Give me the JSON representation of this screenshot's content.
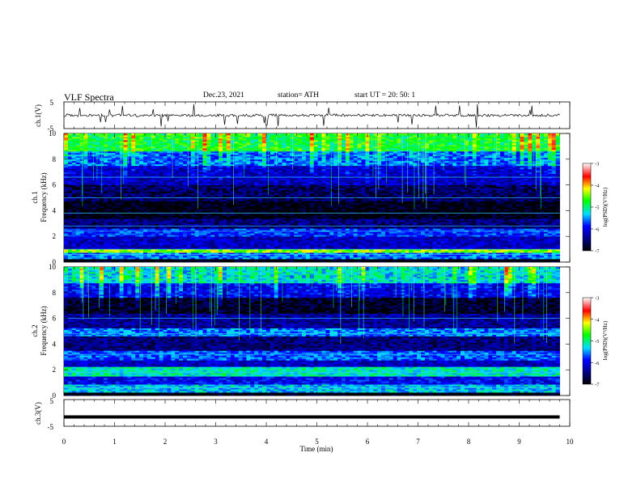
{
  "header": {
    "title": "VLF  Spectra",
    "date": "Dec.23, 2021",
    "station": "station= ATH",
    "start_ut": "start  UT  =    20: 50: 1"
  },
  "chart_data": [
    {
      "type": "line",
      "panel": "waveform-top",
      "ylabel": "ch.1(V)",
      "ylim": [
        -5,
        5
      ],
      "yticks": [
        "5",
        "-5"
      ],
      "xlim": [
        0,
        10
      ],
      "approx_level": 0,
      "note_style": "noisy signal with many sharp spikes"
    },
    {
      "type": "heatmap",
      "panel": "spectrogram-ch1",
      "ylabel": "ch.1\nFrequency  (kHz)",
      "ylabel_line1": "ch.1",
      "ylabel_line2": "Frequency  (kHz)",
      "ylim": [
        0,
        10
      ],
      "yticks": [
        "0",
        "2",
        "4",
        "6",
        "8",
        "10"
      ],
      "xlim": [
        0,
        10
      ],
      "data_end_min": 9.8,
      "colorbar": {
        "label": "log(PSD)(V²/Hz)",
        "ticks": [
          "-3",
          "-4",
          "-5",
          "-6",
          "-7"
        ],
        "range": [
          -7,
          -3
        ]
      },
      "bands": [
        {
          "from": 0.0,
          "to": 0.3,
          "level": -7.0
        },
        {
          "from": 0.3,
          "to": 0.8,
          "level": -5.6
        },
        {
          "from": 0.8,
          "to": 1.0,
          "level": -4.5
        },
        {
          "from": 1.0,
          "to": 2.0,
          "level": -6.2
        },
        {
          "from": 2.0,
          "to": 2.6,
          "level": -5.8
        },
        {
          "from": 2.6,
          "to": 3.4,
          "level": -6.5
        },
        {
          "from": 3.4,
          "to": 4.8,
          "level": -6.95
        },
        {
          "from": 4.8,
          "to": 6.0,
          "level": -6.6
        },
        {
          "from": 6.0,
          "to": 7.5,
          "level": -6.2
        },
        {
          "from": 7.5,
          "to": 8.6,
          "level": -5.7
        },
        {
          "from": 8.6,
          "to": 10.0,
          "level": -5.0
        }
      ],
      "lines_khz": [
        0.6,
        1.0,
        2.4,
        2.8,
        3.8,
        5.0,
        6.6
      ]
    },
    {
      "type": "heatmap",
      "panel": "spectrogram-ch2",
      "ylabel_line1": "ch.2",
      "ylabel_line2": "Frequency  (kHz)",
      "ylim": [
        0,
        10
      ],
      "yticks": [
        "0",
        "2",
        "4",
        "6",
        "8",
        "10"
      ],
      "xlim": [
        0,
        10
      ],
      "data_end_min": 9.8,
      "colorbar": {
        "label": "log(PSD)(V²/Hz)",
        "ticks": [
          "-3",
          "-4",
          "-5",
          "-6",
          "-7"
        ],
        "range": [
          -7,
          -3
        ]
      },
      "bands": [
        {
          "from": 0.0,
          "to": 0.3,
          "level": -7.0
        },
        {
          "from": 0.3,
          "to": 0.9,
          "level": -5.4
        },
        {
          "from": 0.9,
          "to": 1.5,
          "level": -6.0
        },
        {
          "from": 1.5,
          "to": 2.2,
          "level": -5.2
        },
        {
          "from": 2.2,
          "to": 2.8,
          "level": -6.2
        },
        {
          "from": 2.8,
          "to": 3.5,
          "level": -5.7
        },
        {
          "from": 3.5,
          "to": 4.6,
          "level": -6.5
        },
        {
          "from": 4.6,
          "to": 5.2,
          "level": -5.6
        },
        {
          "from": 5.2,
          "to": 6.4,
          "level": -6.4
        },
        {
          "from": 6.4,
          "to": 7.6,
          "level": -6.9
        },
        {
          "from": 7.6,
          "to": 8.8,
          "level": -6.1
        },
        {
          "from": 8.8,
          "to": 10.0,
          "level": -5.4
        }
      ],
      "lines_khz": [
        0.6,
        1.8,
        3.2,
        4.8,
        6.0
      ]
    },
    {
      "type": "line",
      "panel": "waveform-bottom",
      "ylabel": "ch.3(V)",
      "ylim": [
        -5,
        5
      ],
      "yticks": [
        "5",
        "-5"
      ],
      "xlim": [
        0,
        10
      ],
      "approx_level": -1.5,
      "note_style": "thick flat trace"
    }
  ],
  "xaxis": {
    "label": "Time  (min)",
    "ticks": [
      "0",
      "1",
      "2",
      "3",
      "4",
      "5",
      "6",
      "7",
      "8",
      "9",
      "10"
    ]
  },
  "colors": {
    "colormap": [
      "#000000",
      "#000088",
      "#0000ff",
      "#00ddff",
      "#00ff00",
      "#ffff00",
      "#ff0000",
      "#ffffff"
    ]
  }
}
